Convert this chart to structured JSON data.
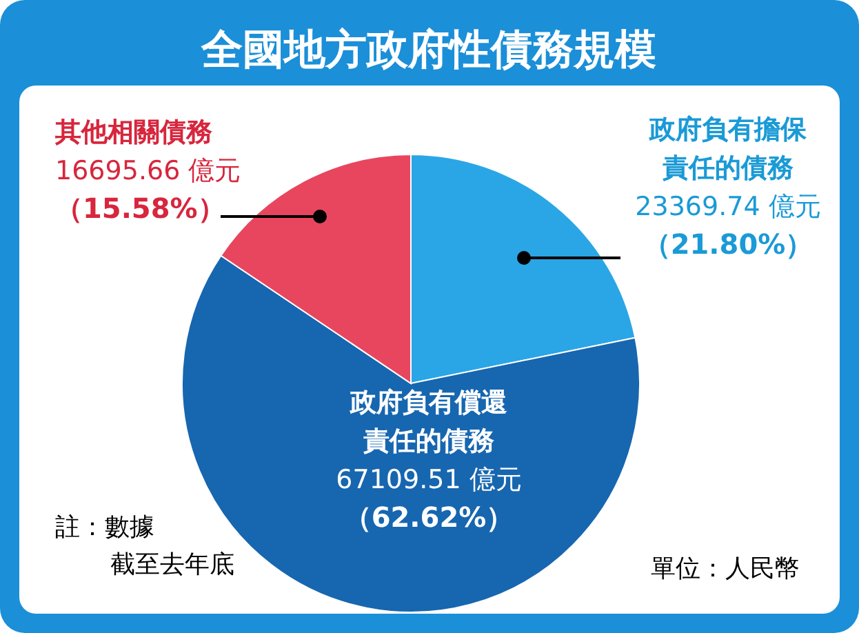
{
  "chart_data": {
    "type": "pie",
    "title": "全國地方政府性債務規模",
    "categories": [
      "政府負有擔保責任的債務",
      "政府負有償還責任的債務",
      "其他相關債務"
    ],
    "values": [
      23369.74,
      67109.51,
      16695.66
    ],
    "value_labels": [
      "23369.74 億元（21.80%）",
      "67109.51 億元（62.62%）",
      "16695.66 億元（15.58%）"
    ],
    "colors": [
      "#2aa6e6",
      "#1766b0",
      "#e8465e"
    ],
    "annotations": [
      "註：數據截至去年底",
      "單位：人民幣"
    ]
  }
}
